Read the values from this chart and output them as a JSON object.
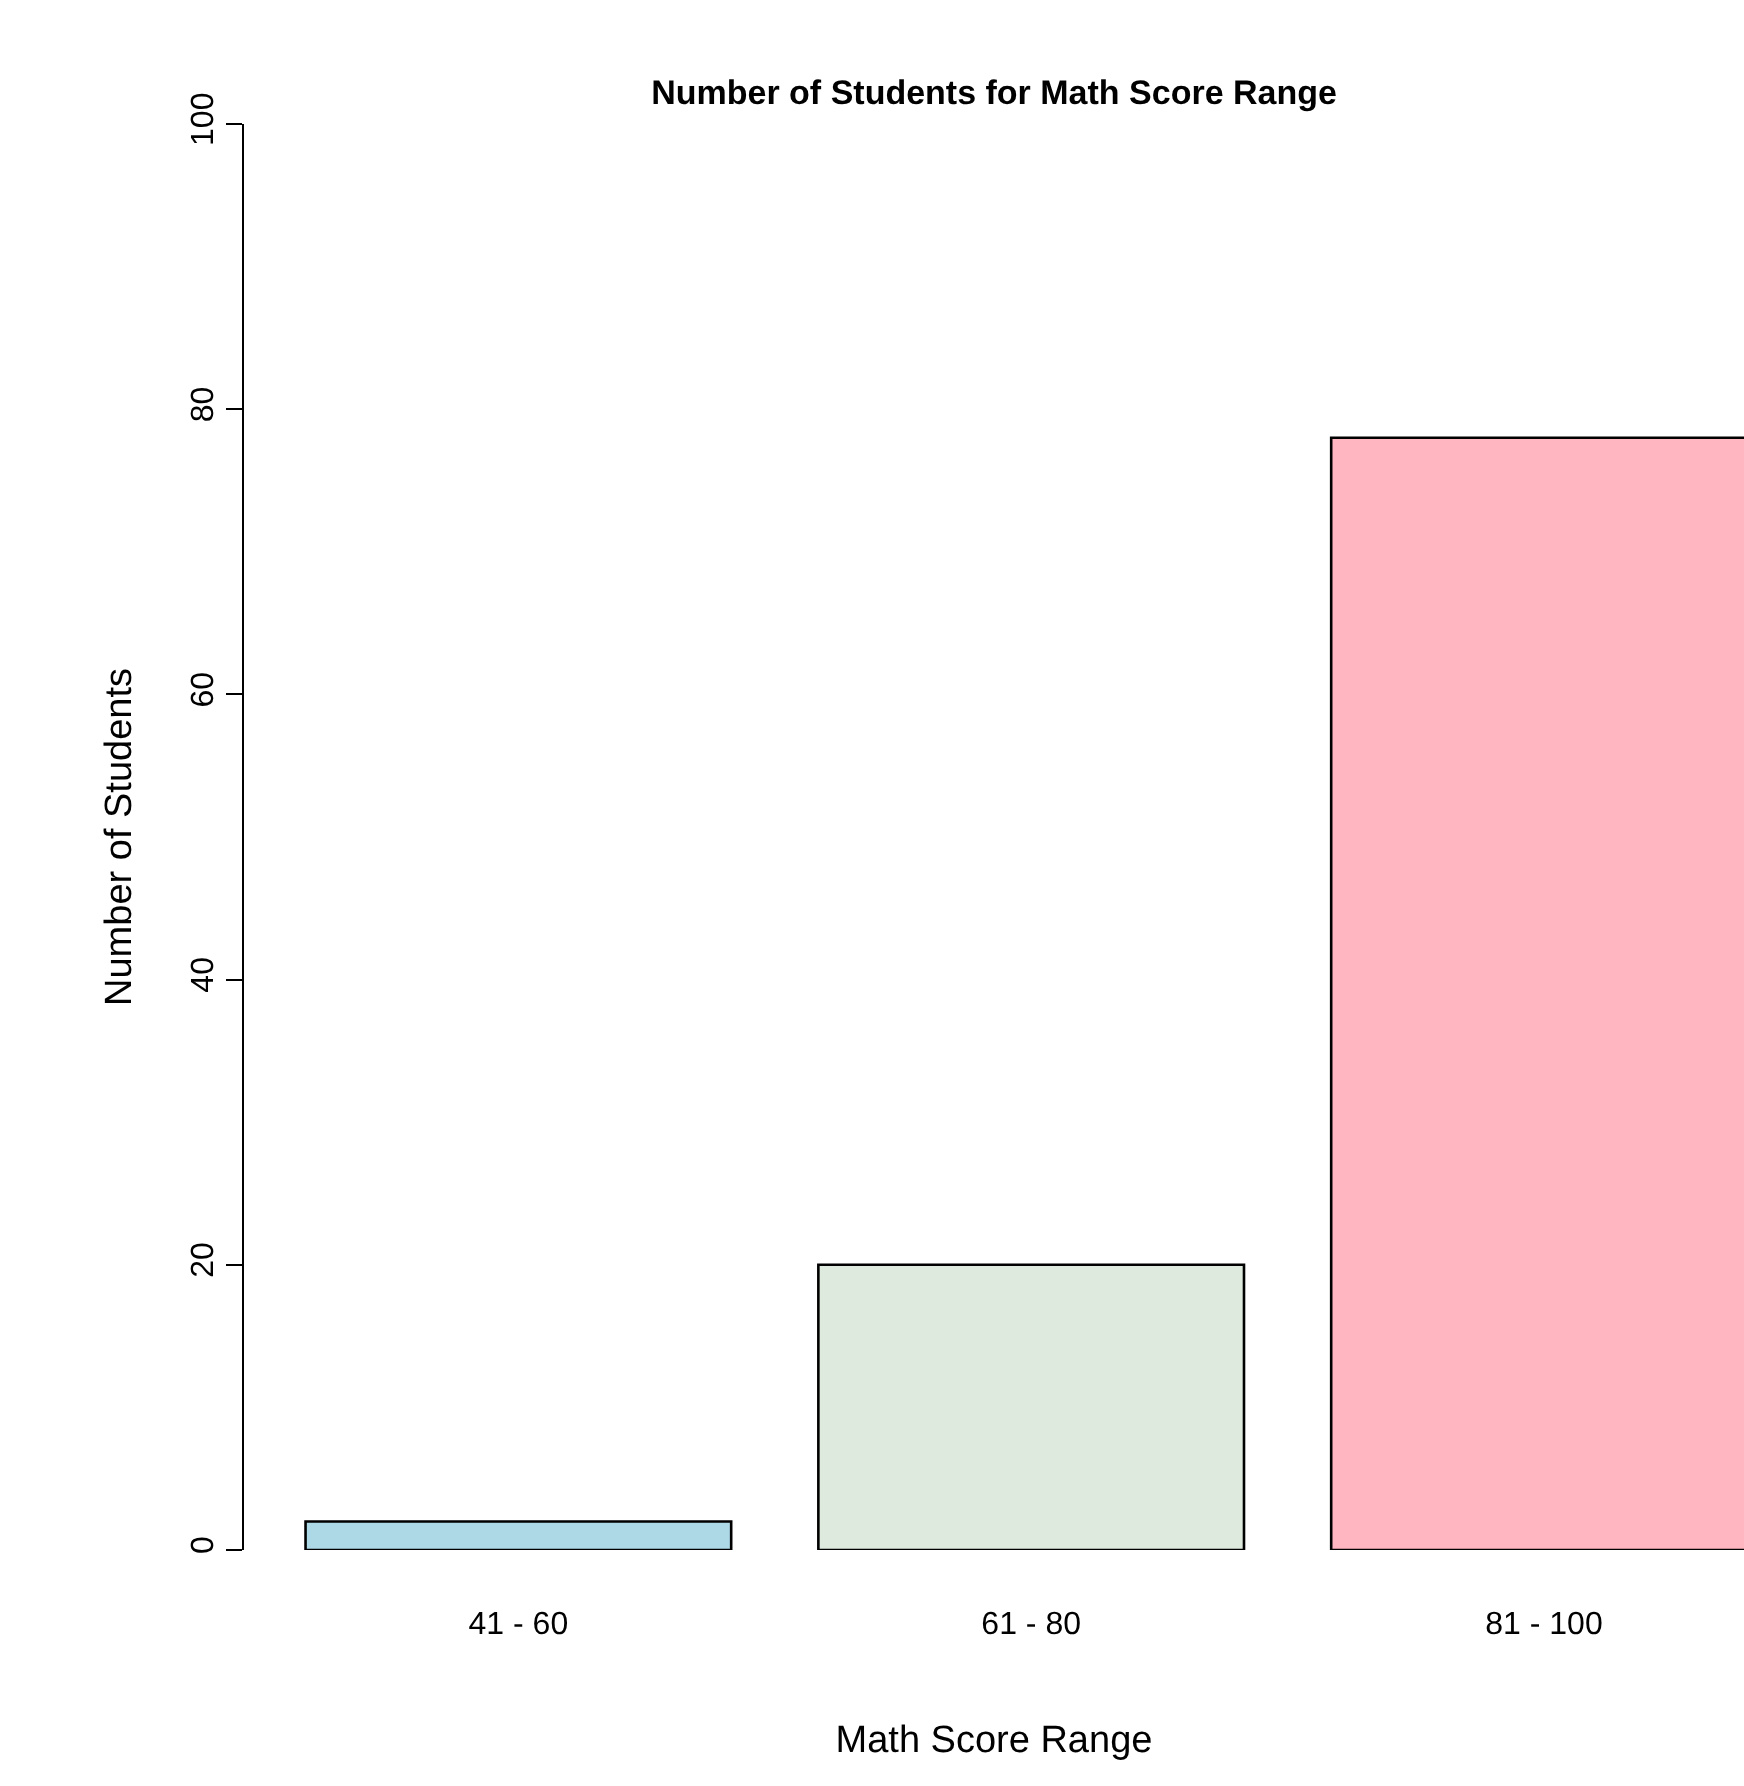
{
  "chart_data": {
    "type": "bar",
    "title": "Number of Students for Math Score Range",
    "xlabel": "Math Score Range",
    "ylabel": "Number of Students",
    "categories": [
      "41 - 60",
      "61 - 80",
      "81 - 100"
    ],
    "values": [
      2,
      20,
      78
    ],
    "colors": [
      "#add8e6",
      "#ddeadd",
      "#ffb6c1"
    ],
    "ylim": [
      0,
      100
    ],
    "yticks": [
      0,
      20,
      40,
      60,
      80,
      100
    ]
  }
}
